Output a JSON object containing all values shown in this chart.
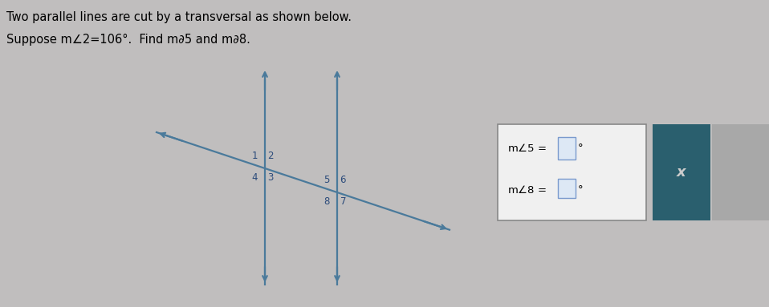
{
  "bg_color": "#c0bebe",
  "title_line1": "Two parallel lines are cut by a transversal as shown below.",
  "title_line2": "Suppose m∠2=106°.  Find m∂5 and m∂8.",
  "title_fontsize": 10.5,
  "line_color": "#4a7a9b",
  "label_color": "#2a4a7a",
  "label_fontsize": 8.5,
  "answer_fontsize": 9.5,
  "answer_box_color": "#f0f0f0",
  "answer_box_border": "#888888",
  "dark_box_color": "#2a5f6e",
  "x_label_color": "#cccccc",
  "inp_box_color": "#dde8f5",
  "inp_box_border": "#7a9acd"
}
